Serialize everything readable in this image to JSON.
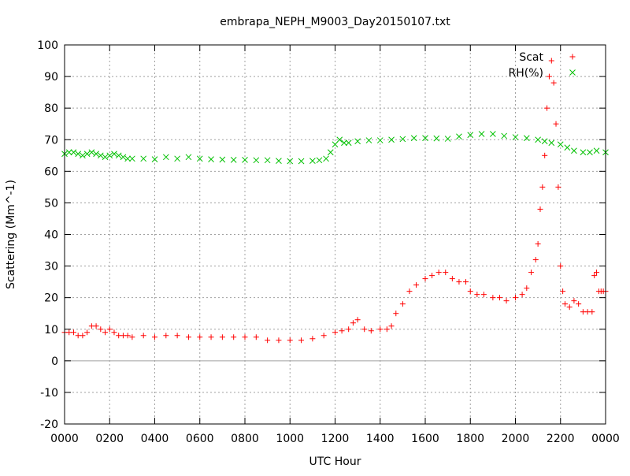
{
  "chart_data": {
    "type": "scatter",
    "title": "embrapa_NEPH_M9003_Day20150107.txt",
    "xlabel": "UTC Hour",
    "ylabel": "Scattering (Mm^-1)",
    "xlim": [
      0,
      24
    ],
    "ylim": [
      -20,
      100
    ],
    "x_ticks": [
      0,
      2,
      4,
      6,
      8,
      10,
      12,
      14,
      16,
      18,
      20,
      22,
      24
    ],
    "x_tick_labels": [
      "0000",
      "0200",
      "0400",
      "0600",
      "0800",
      "1000",
      "1200",
      "1400",
      "1600",
      "1800",
      "2000",
      "2200",
      "0000"
    ],
    "y_ticks": [
      -20,
      -10,
      0,
      10,
      20,
      30,
      40,
      50,
      60,
      70,
      80,
      90,
      100
    ],
    "y_tick_labels": [
      "-20",
      "-10",
      "0",
      "10",
      "20",
      "30",
      "40",
      "50",
      "60",
      "70",
      "80",
      "90",
      "100"
    ],
    "grid": true,
    "zero_line": true,
    "legend_position": "top-right",
    "series": [
      {
        "name": "Scat",
        "marker": "plus",
        "color": "#ff0000",
        "x": [
          0.0,
          0.2,
          0.4,
          0.6,
          0.8,
          1.0,
          1.2,
          1.4,
          1.6,
          1.8,
          2.0,
          2.2,
          2.4,
          2.6,
          2.8,
          3.0,
          3.5,
          4.0,
          4.5,
          5.0,
          5.5,
          6.0,
          6.5,
          7.0,
          7.5,
          8.0,
          8.5,
          9.0,
          9.5,
          10.0,
          10.5,
          11.0,
          11.5,
          12.0,
          12.3,
          12.6,
          12.8,
          13.0,
          13.3,
          13.6,
          14.0,
          14.3,
          14.5,
          14.7,
          15.0,
          15.3,
          15.6,
          16.0,
          16.3,
          16.6,
          16.9,
          17.2,
          17.5,
          17.8,
          18.0,
          18.3,
          18.6,
          19.0,
          19.3,
          19.6,
          20.0,
          20.3,
          20.5,
          20.7,
          20.9,
          21.0,
          21.1,
          21.2,
          21.3,
          21.4,
          21.5,
          21.6,
          21.7,
          21.8,
          21.9,
          22.0,
          22.1,
          22.2,
          22.4,
          22.6,
          22.8,
          23.0,
          23.2,
          23.4,
          23.5,
          23.6,
          23.7,
          23.8,
          23.9,
          24.0
        ],
        "y": [
          9,
          9,
          9,
          8,
          8,
          9,
          11,
          11,
          10,
          9,
          10,
          9,
          8,
          8,
          8,
          7.5,
          8,
          7.5,
          8,
          8,
          7.5,
          7.5,
          7.5,
          7.5,
          7.5,
          7.5,
          7.5,
          6.5,
          6.5,
          6.5,
          6.5,
          7,
          8,
          9,
          9.5,
          10,
          12,
          13,
          10,
          9.5,
          10,
          10,
          11,
          15,
          18,
          22,
          24,
          26,
          27,
          28,
          28,
          26,
          25,
          25,
          22,
          21,
          21,
          20,
          20,
          19,
          20,
          21,
          23,
          28,
          32,
          37,
          48,
          55,
          65,
          80,
          90,
          95,
          88,
          75,
          55,
          30,
          22,
          18,
          17,
          19,
          18,
          15.5,
          15.5,
          15.5,
          27,
          28,
          22,
          22,
          22,
          22
        ]
      },
      {
        "name": "RH(%)",
        "marker": "x",
        "color": "#00c000",
        "x": [
          0.0,
          0.2,
          0.4,
          0.6,
          0.8,
          1.0,
          1.2,
          1.4,
          1.6,
          1.8,
          2.0,
          2.2,
          2.4,
          2.6,
          2.8,
          3.0,
          3.5,
          4.0,
          4.5,
          5.0,
          5.5,
          6.0,
          6.5,
          7.0,
          7.5,
          8.0,
          8.5,
          9.0,
          9.5,
          10.0,
          10.5,
          11.0,
          11.3,
          11.6,
          11.8,
          12.0,
          12.2,
          12.4,
          12.6,
          13.0,
          13.5,
          14.0,
          14.5,
          15.0,
          15.5,
          16.0,
          16.5,
          17.0,
          17.5,
          18.0,
          18.5,
          19.0,
          19.5,
          20.0,
          20.5,
          21.0,
          21.3,
          21.6,
          22.0,
          22.3,
          22.6,
          23.0,
          23.3,
          23.6,
          24.0
        ],
        "y": [
          65.5,
          66,
          66,
          65.5,
          65,
          65.5,
          66,
          65.5,
          65,
          64.5,
          65,
          65.5,
          65,
          64.5,
          64,
          64,
          64,
          63.8,
          64.5,
          64,
          64.5,
          64,
          63.8,
          63.7,
          63.6,
          63.6,
          63.5,
          63.5,
          63.3,
          63.2,
          63.2,
          63.3,
          63.5,
          64,
          66,
          68.5,
          70,
          69,
          69,
          69.5,
          69.8,
          69.8,
          70,
          70.2,
          70.5,
          70.5,
          70.4,
          70.3,
          71,
          71.5,
          71.8,
          71.8,
          71.2,
          70.8,
          70.5,
          70,
          69.5,
          69,
          68.5,
          67.5,
          66.5,
          66,
          66,
          66.5,
          66
        ]
      }
    ]
  }
}
